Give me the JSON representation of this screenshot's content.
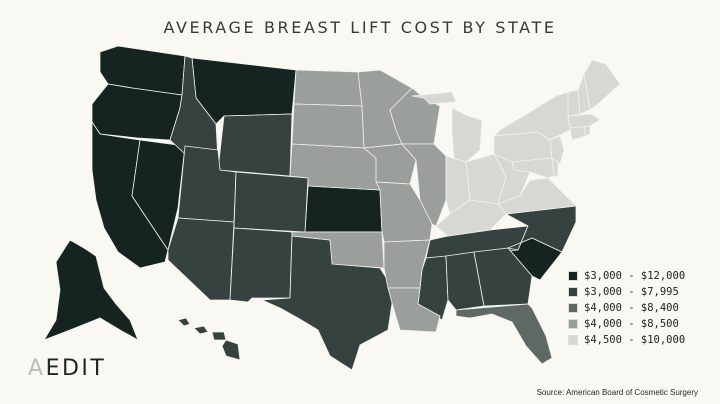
{
  "title": "AVERAGE BREAST LIFT COST BY STATE",
  "legend": [
    {
      "label": "$3,000 - $12,000",
      "color": "#152420"
    },
    {
      "label": "$3,000 - $7,995",
      "color": "#364240"
    },
    {
      "label": "$4,000 - $8,400",
      "color": "#5e6865"
    },
    {
      "label": "$4,000 - $8,500",
      "color": "#9b9f9c"
    },
    {
      "label": "$4,500 - $10,000",
      "color": "#d7d8d4"
    }
  ],
  "tiers": {
    "$3,000 - $12,000": [
      "Washington",
      "Oregon",
      "California",
      "Nevada",
      "Montana",
      "Kansas",
      "South Carolina",
      "Alaska"
    ],
    "$3,000 - $7,995": [
      "Idaho",
      "Wyoming",
      "Utah",
      "Colorado",
      "Arizona",
      "New Mexico",
      "Texas",
      "Tennessee",
      "North Carolina",
      "Mississippi",
      "Alabama",
      "Georgia",
      "Hawaii"
    ],
    "$4,000 - $8,400": [
      "Florida"
    ],
    "$4,000 - $8,500": [
      "North Dakota",
      "South Dakota",
      "Nebraska",
      "Oklahoma",
      "Minnesota",
      "Iowa",
      "Missouri",
      "Arkansas",
      "Louisiana",
      "Wisconsin",
      "Illinois"
    ],
    "$4,500 - $10,000": [
      "Michigan",
      "Indiana",
      "Ohio",
      "Kentucky",
      "West Virginia",
      "Virginia",
      "Pennsylvania",
      "New York",
      "Maryland",
      "Delaware",
      "New Jersey",
      "Connecticut",
      "Rhode Island",
      "Massachusetts",
      "Vermont",
      "New Hampshire",
      "Maine"
    ]
  },
  "logo": {
    "first": "A",
    "rest": "EDIT"
  },
  "source": "Source: American Board of Cosmetic Surgery"
}
